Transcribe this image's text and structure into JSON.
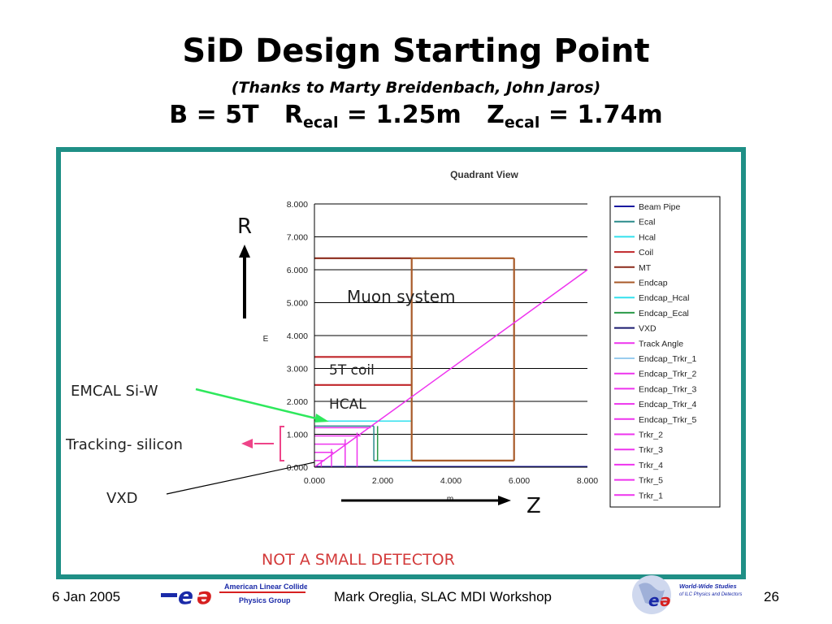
{
  "slide": {
    "title": "SiD Design Starting Point",
    "subtitle": "(Thanks to Marty Breidenbach, John Jaros)",
    "params": {
      "b_field": "B = 5T",
      "r_sym": "R",
      "r_sub": "ecal",
      "r_val": " = 1.25m",
      "z_sym": "Z",
      "z_sub": "ecal",
      "z_val": " = 1.74m"
    }
  },
  "annotations": {
    "r_axis": "R",
    "z_axis": "Z",
    "emcal": "EMCAL Si-W",
    "tracking": "Tracking- silicon",
    "vxd": "VXD",
    "muon": "Muon system",
    "coil": "5T coil",
    "hcal": "HCAL",
    "not_small": "NOT A SMALL DETECTOR"
  },
  "chart_data": {
    "type": "line",
    "title": "Quadrant View",
    "xlabel": "m",
    "ylabel": "E",
    "xlim": [
      0,
      8
    ],
    "ylim": [
      0,
      8
    ],
    "xticks": [
      "0.000",
      "2.000",
      "4.000",
      "6.000",
      "8.000"
    ],
    "yticks": [
      "0.000",
      "1.000",
      "2.000",
      "3.000",
      "4.000",
      "5.000",
      "6.000",
      "7.000",
      "8.000"
    ],
    "grid": true,
    "legend_position": "right",
    "series": [
      {
        "name": "Beam Pipe",
        "color": "#1a1aa0",
        "segments": [
          [
            [
              0,
              0.02
            ],
            [
              8,
              0.02
            ]
          ]
        ]
      },
      {
        "name": "Ecal",
        "color": "#2b8c8c",
        "segments": [
          [
            [
              0,
              1.25
            ],
            [
              1.74,
              1.25
            ]
          ],
          [
            [
              1.74,
              0.2
            ],
            [
              1.74,
              1.25
            ]
          ]
        ]
      },
      {
        "name": "Hcal",
        "color": "#33e0ee",
        "segments": [
          [
            [
              0,
              1.4
            ],
            [
              2.85,
              1.4
            ]
          ],
          [
            [
              2.85,
              0.2
            ],
            [
              2.85,
              1.4
            ]
          ]
        ]
      },
      {
        "name": "Coil",
        "color": "#c0262a",
        "segments": [
          [
            [
              0,
              2.5
            ],
            [
              2.85,
              2.5
            ]
          ],
          [
            [
              0,
              3.35
            ],
            [
              2.85,
              3.35
            ]
          ]
        ]
      },
      {
        "name": "MT",
        "color": "#8b2a1a",
        "segments": [
          [
            [
              0,
              6.35
            ],
            [
              2.85,
              6.35
            ]
          ]
        ]
      },
      {
        "name": "Endcap",
        "color": "#a85a28",
        "segments": [
          [
            [
              2.85,
              0.2
            ],
            [
              2.85,
              6.35
            ]
          ],
          [
            [
              2.85,
              6.35
            ],
            [
              5.85,
              6.35
            ]
          ],
          [
            [
              5.85,
              0.2
            ],
            [
              5.85,
              6.35
            ]
          ],
          [
            [
              2.85,
              0.2
            ],
            [
              5.85,
              0.2
            ]
          ]
        ]
      },
      {
        "name": "Endcap_Hcal",
        "color": "#33e0ee",
        "segments": [
          [
            [
              1.85,
              0.2
            ],
            [
              2.85,
              0.2
            ]
          ]
        ]
      },
      {
        "name": "Endcap_Ecal",
        "color": "#2a9a48",
        "segments": [
          [
            [
              1.74,
              0.2
            ],
            [
              1.85,
              0.2
            ]
          ],
          [
            [
              1.85,
              0.2
            ],
            [
              1.85,
              1.25
            ]
          ]
        ]
      },
      {
        "name": "VXD",
        "color": "#1a1a6e",
        "segments": []
      },
      {
        "name": "Track Angle",
        "color": "#ee33ee",
        "segments": [
          [
            [
              0,
              0
            ],
            [
              8,
              6
            ]
          ]
        ]
      },
      {
        "name": "Endcap_Trkr_1",
        "color": "#99ccee",
        "segments": []
      },
      {
        "name": "Endcap_Trkr_2",
        "color": "#ee33ee",
        "segments": [
          [
            [
              0.2,
              0
            ],
            [
              0.2,
              0.2
            ]
          ]
        ]
      },
      {
        "name": "Endcap_Trkr_3",
        "color": "#ee33ee",
        "segments": [
          [
            [
              0.5,
              0
            ],
            [
              0.5,
              0.55
            ]
          ]
        ]
      },
      {
        "name": "Endcap_Trkr_4",
        "color": "#ee33ee",
        "segments": [
          [
            [
              0.9,
              0
            ],
            [
              0.9,
              0.85
            ]
          ]
        ]
      },
      {
        "name": "Endcap_Trkr_5",
        "color": "#ee33ee",
        "segments": [
          [
            [
              1.25,
              0
            ],
            [
              1.25,
              1.05
            ]
          ]
        ]
      },
      {
        "name": "Trkr_2",
        "color": "#ee33ee",
        "segments": [
          [
            [
              0,
              0.45
            ],
            [
              0.55,
              0.45
            ]
          ]
        ]
      },
      {
        "name": "Trkr_3",
        "color": "#ee33ee",
        "segments": [
          [
            [
              0,
              0.7
            ],
            [
              0.9,
              0.7
            ]
          ]
        ]
      },
      {
        "name": "Trkr_4",
        "color": "#ee33ee",
        "segments": [
          [
            [
              0,
              0.95
            ],
            [
              1.35,
              0.95
            ]
          ]
        ]
      },
      {
        "name": "Trkr_5",
        "color": "#ee33ee",
        "segments": [
          [
            [
              0,
              1.2
            ],
            [
              1.65,
              1.2
            ]
          ]
        ]
      },
      {
        "name": "Trkr_1",
        "color": "#ee33ee",
        "segments": [
          [
            [
              0,
              0.2
            ],
            [
              0.3,
              0.2
            ]
          ]
        ]
      }
    ]
  },
  "footer": {
    "date": "6 Jan 2005",
    "center": "Mark Oreglia, SLAC MDI Workshop",
    "page": "26",
    "logo_left_line1": "American Linear Collider",
    "logo_left_line2": "Physics Group",
    "logo_right_line1": "World-Wide Studies",
    "logo_right_line2": "of ILC Physics and Detectors"
  },
  "colors": {
    "frame": "#1f8f86",
    "emcal_arrow": "#2ee85c",
    "tracking_arrow": "#ee4488",
    "not_small": "#d33a3a",
    "logo_blue": "#1a2aa8",
    "logo_red": "#d62020"
  }
}
